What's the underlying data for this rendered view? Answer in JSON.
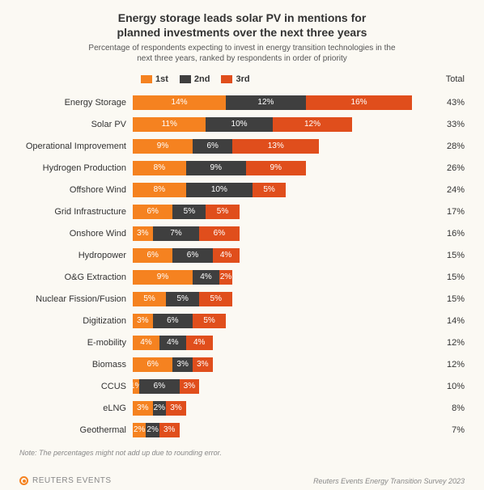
{
  "title_line1": "Energy storage leads solar PV in mentions for",
  "title_line2": "planned investments over the next three years",
  "title_fontsize": 14,
  "subtitle_line1": "Percentage of respondents expecting to invest in energy transition technologies in the",
  "subtitle_line2": "next three years, ranked by respondents in order of priority",
  "subtitle_fontsize": 10,
  "legend": {
    "items": [
      {
        "label": "1st",
        "color": "#f58220"
      },
      {
        "label": "2nd",
        "color": "#3f3f3f"
      },
      {
        "label": "3rd",
        "color": "#e04e1c"
      }
    ],
    "total_header": "Total"
  },
  "chart": {
    "type": "stacked-horizontal-bar",
    "x_max": 45,
    "background_color": "#fbf9f3",
    "segment_label_color": "#ffffff",
    "segment_label_fontsize": 10,
    "row_label_fontsize": 11,
    "rows": [
      {
        "label": "Energy Storage",
        "values": [
          14,
          12,
          16
        ],
        "total": 43
      },
      {
        "label": "Solar PV",
        "values": [
          11,
          10,
          12
        ],
        "total": 33
      },
      {
        "label": "Operational Improvement",
        "values": [
          9,
          6,
          13
        ],
        "total": 28
      },
      {
        "label": "Hydrogen Production",
        "values": [
          8,
          9,
          9
        ],
        "total": 26
      },
      {
        "label": "Offshore Wind",
        "values": [
          8,
          10,
          5
        ],
        "total": 24
      },
      {
        "label": "Grid Infrastructure",
        "values": [
          6,
          5,
          5
        ],
        "total": 17
      },
      {
        "label": "Onshore Wind",
        "values": [
          3,
          7,
          6
        ],
        "total": 16
      },
      {
        "label": "Hydropower",
        "values": [
          6,
          6,
          4
        ],
        "total": 15
      },
      {
        "label": "O&G Extraction",
        "values": [
          9,
          4,
          2
        ],
        "total": 15
      },
      {
        "label": "Nuclear Fission/Fusion",
        "values": [
          5,
          5,
          5
        ],
        "total": 15
      },
      {
        "label": "Digitization",
        "values": [
          3,
          6,
          5
        ],
        "total": 14
      },
      {
        "label": "E-mobility",
        "values": [
          4,
          4,
          4
        ],
        "total": 12
      },
      {
        "label": "Biomass",
        "values": [
          6,
          3,
          3
        ],
        "total": 12
      },
      {
        "label": "CCUS",
        "values": [
          1,
          6,
          3
        ],
        "total": 10
      },
      {
        "label": "eLNG",
        "values": [
          3,
          2,
          3
        ],
        "total": 8
      },
      {
        "label": "Geothermal",
        "values": [
          2,
          2,
          3
        ],
        "total": 7
      }
    ]
  },
  "note": "Note: The percentages might not add up due to rounding error.",
  "footer": {
    "brand": "REUTERS EVENTS",
    "source": "Reuters Events Energy Transition Survey 2023"
  }
}
